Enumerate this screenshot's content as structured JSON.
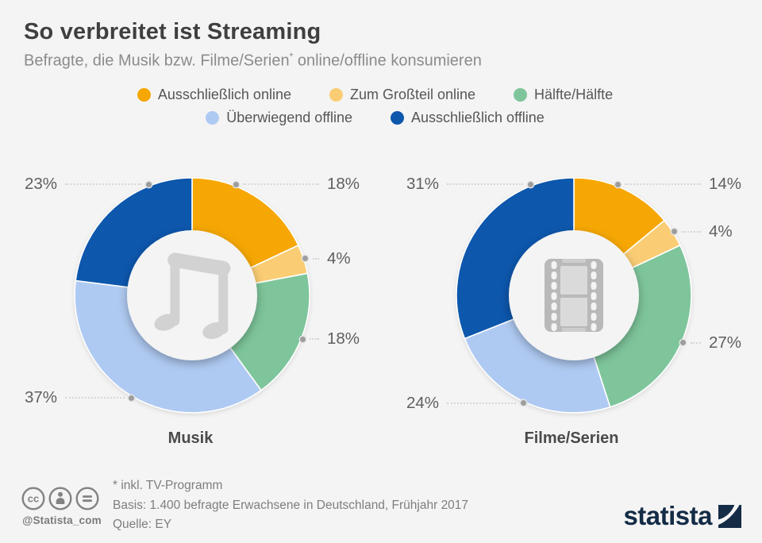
{
  "header": {
    "title": "So verbreitet ist Streaming",
    "subtitle_before": "Befragte, die Musik bzw. Filme/Serien",
    "subtitle_sup": "*",
    "subtitle_after": " online/offline konsumieren"
  },
  "legend": {
    "rows": [
      [
        {
          "label": "Ausschließlich online",
          "color": "#f6a703"
        },
        {
          "label": "Zum Großteil online",
          "color": "#facd74"
        },
        {
          "label": "Hälfte/Hälfte",
          "color": "#7ec59b"
        }
      ],
      [
        {
          "label": "Überwiegend offline",
          "color": "#afcaf2"
        },
        {
          "label": "Ausschließlich offline",
          "color": "#0d57ad"
        }
      ]
    ]
  },
  "chart_data": [
    {
      "type": "donut",
      "title": "Musik",
      "icon": "music-note-icon",
      "unit": "%",
      "total": 100,
      "slices": [
        {
          "label": "Ausschließlich online",
          "value": 18,
          "color": "#f6a703"
        },
        {
          "label": "Zum Großteil online",
          "value": 4,
          "color": "#facd74"
        },
        {
          "label": "Hälfte/Hälfte",
          "value": 18,
          "color": "#7ec59b"
        },
        {
          "label": "Überwiegend offline",
          "value": 37,
          "color": "#afcaf2"
        },
        {
          "label": "Ausschließlich offline",
          "value": 23,
          "color": "#0d57ad"
        }
      ]
    },
    {
      "type": "donut",
      "title": "Filme/Serien",
      "icon": "film-strip-icon",
      "unit": "%",
      "total": 100,
      "slices": [
        {
          "label": "Ausschließlich online",
          "value": 14,
          "color": "#f6a703"
        },
        {
          "label": "Zum Großteil online",
          "value": 4,
          "color": "#facd74"
        },
        {
          "label": "Hälfte/Hälfte",
          "value": 27,
          "color": "#7ec59b"
        },
        {
          "label": "Überwiegend offline",
          "value": 24,
          "color": "#afcaf2"
        },
        {
          "label": "Ausschließlich offline",
          "value": 31,
          "color": "#0d57ad"
        }
      ]
    }
  ],
  "footer": {
    "note_asterisk": "* inkl. TV-Programm",
    "note_basis": "Basis: 1.400 befragte Erwachsene in Deutschland, Frühjahr 2017",
    "note_source": "Quelle: EY",
    "handle": "@Statista_com",
    "brand": "statista",
    "license_icons": [
      "cc-license-icon",
      "cc-attribution-icon",
      "cc-no-derivatives-icon"
    ]
  },
  "colors": {
    "background": "#f4f4f4",
    "brand_navy": "#142c46",
    "exclusively_online": "#f6a703",
    "mostly_online": "#facd74",
    "half_half": "#7ec59b",
    "mostly_offline": "#afcaf2",
    "exclusively_offline": "#0d57ad"
  }
}
